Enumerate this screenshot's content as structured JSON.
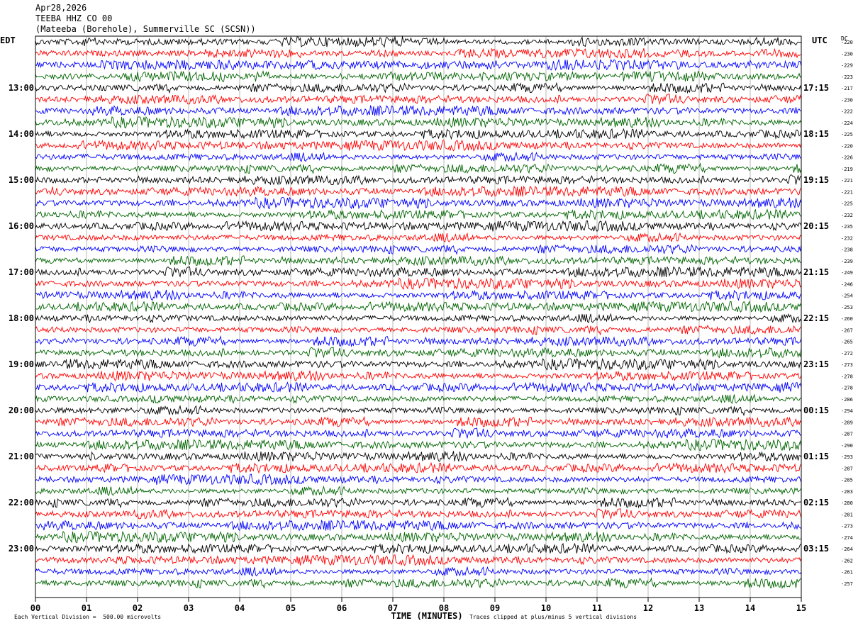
{
  "header": {
    "date": "Apr28,2026",
    "station": "TEEBA HHZ CO 00",
    "location": "(Mateeba (Borehole), Summerville SC (SCSN))"
  },
  "left_tz": "EDT",
  "right_tz": "UTC",
  "dc_label": "DC",
  "chart_data": {
    "type": "line",
    "title": "TEEBA HHZ CO 00",
    "xlabel": "TIME (MINUTES)",
    "xlim": [
      0,
      15
    ],
    "x_ticks": [
      "00",
      "01",
      "02",
      "03",
      "04",
      "05",
      "06",
      "07",
      "08",
      "09",
      "10",
      "11",
      "12",
      "13",
      "14",
      "15"
    ],
    "left_hour_labels": [
      "13:00",
      "14:00",
      "15:00",
      "16:00",
      "17:00",
      "18:00",
      "19:00",
      "20:00",
      "21:00",
      "22:00",
      "23:00"
    ],
    "right_hour_labels": [
      "17:15",
      "18:15",
      "19:15",
      "20:15",
      "21:15",
      "22:15",
      "23:15",
      "00:15",
      "01:15",
      "02:15",
      "03:15"
    ],
    "trace_colors": [
      "#000000",
      "#ff0000",
      "#0000ff",
      "#006400"
    ],
    "dc_offsets": [
      -220,
      -230,
      -229,
      -223,
      -217,
      -230,
      -222,
      -224,
      -225,
      -220,
      -226,
      -219,
      -221,
      -221,
      -225,
      -232,
      -235,
      -232,
      -238,
      -239,
      -249,
      -246,
      -254,
      -253,
      -260,
      -267,
      -265,
      -272,
      -273,
      -278,
      -278,
      -286,
      -294,
      -289,
      -287,
      -290,
      -293,
      -287,
      -285,
      -283,
      -280,
      -281,
      -273,
      -274,
      -264,
      -262,
      -261,
      -257
    ],
    "trace_count": 48,
    "trace_minutes": 15
  },
  "footer": {
    "scale_note": "Each Vertical Division =  500.00 microvolts",
    "clip_note": "Traces clipped at plus/minus 5 vertical divisions"
  }
}
